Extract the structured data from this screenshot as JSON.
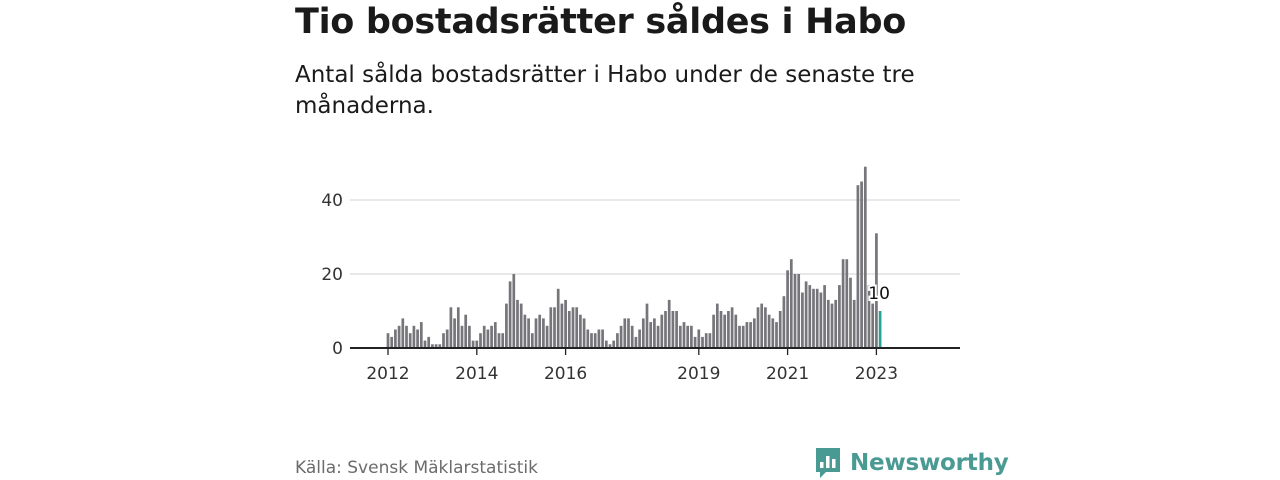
{
  "title": "Tio bostadsrätter såldes i Habo",
  "subtitle": "Antal sålda bostadsrätter i Habo under de senaste tre månaderna.",
  "source": "Källa: Svensk Mäklarstatistik",
  "brand": {
    "name": "Newsworthy",
    "icon": "newsworthy-logo-icon"
  },
  "colors": {
    "bar": "#75757a",
    "highlight": "#2aa198",
    "grid": "#d9d9d9",
    "axis": "#222222",
    "brand": "#4a9a94"
  },
  "chart_data": {
    "type": "bar",
    "title": "Tio bostadsrätter såldes i Habo",
    "xlabel": "",
    "ylabel": "",
    "ylim": [
      0,
      50
    ],
    "yticks": [
      0,
      20,
      40
    ],
    "x_start": "2012-01",
    "x_end": "2023-01",
    "xtick_labels": [
      {
        "label": "2012",
        "month_index": 0
      },
      {
        "label": "2014",
        "month_index": 24
      },
      {
        "label": "2016",
        "month_index": 48
      },
      {
        "label": "2019",
        "month_index": 84
      },
      {
        "label": "2021",
        "month_index": 108
      },
      {
        "label": "2023",
        "month_index": 132
      }
    ],
    "values": [
      4,
      3,
      5,
      6,
      8,
      6,
      4,
      6,
      5,
      7,
      2,
      3,
      1,
      1,
      1,
      4,
      5,
      11,
      8,
      11,
      6,
      9,
      6,
      2,
      2,
      4,
      6,
      5,
      6,
      7,
      4,
      4,
      12,
      18,
      20,
      13,
      12,
      9,
      8,
      4,
      8,
      9,
      8,
      6,
      11,
      11,
      16,
      12,
      13,
      10,
      11,
      11,
      9,
      8,
      5,
      4,
      4,
      5,
      5,
      2,
      1,
      2,
      4,
      6,
      8,
      8,
      6,
      3,
      5,
      8,
      12,
      7,
      8,
      6,
      9,
      10,
      13,
      10,
      10,
      6,
      7,
      6,
      6,
      3,
      5,
      3,
      4,
      4,
      9,
      12,
      10,
      9,
      10,
      11,
      9,
      6,
      6,
      7,
      7,
      8,
      11,
      12,
      11,
      9,
      8,
      7,
      10,
      14,
      21,
      24,
      20,
      20,
      15,
      18,
      17,
      16,
      16,
      15,
      17,
      13,
      12,
      13,
      17,
      24,
      24,
      19,
      13,
      44,
      45,
      49,
      17,
      12,
      31,
      10
    ],
    "highlight_index": 133,
    "highlight_label": "10"
  }
}
